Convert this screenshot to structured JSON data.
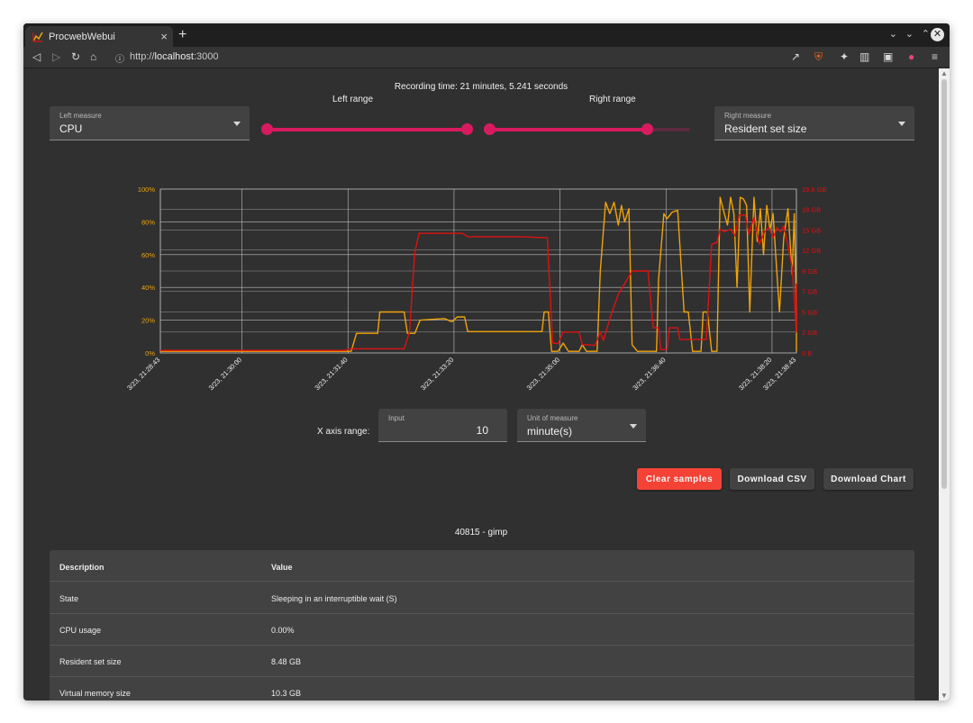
{
  "browser": {
    "tab_title": "ProcwebWebui",
    "tab_close": "×",
    "new_tab": "+",
    "url_scheme": "http://",
    "url_host": "localhost",
    "url_port": ":3000"
  },
  "header": {
    "recording_time": "Recording time: 21 minutes, 5.241 seconds",
    "left_range_label": "Left range",
    "right_range_label": "Right range"
  },
  "left_measure": {
    "label": "Left measure",
    "value": "CPU"
  },
  "right_measure": {
    "label": "Right measure",
    "value": "Resident set size"
  },
  "sliders": {
    "left": {
      "from_fraction": 0.0,
      "to_fraction": 1.0
    },
    "right": {
      "from_fraction": 0.0,
      "to_fraction": 0.78
    }
  },
  "colors": {
    "cpu": "#f0a30a",
    "rss": "#e01010",
    "accent": "#d81b60",
    "danger": "#f44336"
  },
  "chart_data": {
    "type": "line",
    "x_labels": [
      "3/23, 21:28:43",
      "3/23, 21:30:00",
      "3/23, 21:31:40",
      "3/23, 21:33:20",
      "3/23, 21:35:00",
      "3/23, 21:36:40",
      "3/23, 21:38:20",
      "3/23, 21:38:43"
    ],
    "x_label_times_s": [
      0,
      77,
      177,
      277,
      377,
      477,
      577,
      600
    ],
    "xlim_s": [
      0,
      600
    ],
    "left_axis": {
      "ticks": [
        "0%",
        "20%",
        "40%",
        "60%",
        "80%",
        "100%"
      ],
      "ylim": [
        0,
        100
      ],
      "unit": "%"
    },
    "right_axis": {
      "ticks": [
        "0 B",
        "2 GB",
        "5 GB",
        "7 GB",
        "9 GB",
        "12 GB",
        "15 GB",
        "18 GB",
        "19.6 GB"
      ],
      "tick_values": [
        0,
        2.5,
        4.9,
        7.4,
        9.8,
        12.3,
        14.7,
        17.2,
        19.6
      ],
      "ylim": [
        0,
        19.6
      ],
      "unit": "GB"
    },
    "grid": true,
    "series": [
      {
        "axis": "left",
        "points": [
          [
            0,
            1
          ],
          [
            170,
            1
          ],
          [
            180,
            1
          ],
          [
            185,
            12
          ],
          [
            205,
            12
          ],
          [
            207,
            25
          ],
          [
            230,
            25
          ],
          [
            233,
            12
          ],
          [
            240,
            12
          ],
          [
            245,
            20
          ],
          [
            268,
            21
          ],
          [
            275,
            19
          ],
          [
            280,
            22
          ],
          [
            287,
            22
          ],
          [
            290,
            13
          ],
          [
            305,
            13
          ],
          [
            318,
            13
          ],
          [
            340,
            13
          ],
          [
            350,
            13
          ],
          [
            360,
            13
          ],
          [
            362,
            25
          ],
          [
            366,
            25
          ],
          [
            369,
            1
          ],
          [
            375,
            1
          ],
          [
            380,
            6
          ],
          [
            385,
            1
          ],
          [
            395,
            1
          ],
          [
            398,
            5
          ],
          [
            402,
            1
          ],
          [
            412,
            1
          ],
          [
            415,
            50
          ],
          [
            420,
            92
          ],
          [
            424,
            85
          ],
          [
            428,
            92
          ],
          [
            432,
            78
          ],
          [
            435,
            90
          ],
          [
            438,
            80
          ],
          [
            442,
            88
          ],
          [
            445,
            5
          ],
          [
            450,
            1
          ],
          [
            468,
            1
          ],
          [
            470,
            45
          ],
          [
            475,
            85
          ],
          [
            478,
            82
          ],
          [
            483,
            86
          ],
          [
            488,
            87
          ],
          [
            494,
            25
          ],
          [
            498,
            25
          ],
          [
            502,
            1
          ],
          [
            510,
            1
          ],
          [
            512,
            25
          ],
          [
            516,
            25
          ],
          [
            520,
            1
          ],
          [
            525,
            1
          ],
          [
            528,
            95
          ],
          [
            532,
            85
          ],
          [
            535,
            78
          ],
          [
            538,
            95
          ],
          [
            541,
            85
          ],
          [
            544,
            40
          ],
          [
            547,
            95
          ],
          [
            550,
            94
          ],
          [
            553,
            90
          ],
          [
            556,
            25
          ],
          [
            560,
            95
          ],
          [
            563,
            68
          ],
          [
            566,
            88
          ],
          [
            569,
            60
          ],
          [
            572,
            90
          ],
          [
            575,
            75
          ],
          [
            578,
            85
          ],
          [
            581,
            55
          ],
          [
            584,
            25
          ],
          [
            588,
            70
          ],
          [
            592,
            88
          ],
          [
            596,
            48
          ],
          [
            598,
            85
          ],
          [
            602,
            26
          ],
          [
            606,
            1
          ],
          [
            620,
            1
          ],
          [
            625,
            1
          ]
        ]
      },
      {
        "axis": "right",
        "points": [
          [
            0,
            0.3
          ],
          [
            175,
            0.3
          ],
          [
            178,
            0.5
          ],
          [
            185,
            0.5
          ],
          [
            205,
            0.5
          ],
          [
            230,
            0.5
          ],
          [
            235,
            2.5
          ],
          [
            240,
            12.0
          ],
          [
            244,
            14.3
          ],
          [
            285,
            14.3
          ],
          [
            290,
            13.9
          ],
          [
            340,
            13.9
          ],
          [
            360,
            13.8
          ],
          [
            365,
            13.8
          ],
          [
            370,
            1.2
          ],
          [
            375,
            1.1
          ],
          [
            380,
            2.5
          ],
          [
            395,
            2.5
          ],
          [
            398,
            1.0
          ],
          [
            410,
            0.9
          ],
          [
            415,
            2.5
          ],
          [
            418,
            1.5
          ],
          [
            425,
            4.5
          ],
          [
            432,
            7.0
          ],
          [
            445,
            9.8
          ],
          [
            460,
            9.8
          ],
          [
            465,
            3.0
          ],
          [
            470,
            3.0
          ],
          [
            472,
            0.4
          ],
          [
            478,
            0.4
          ],
          [
            480,
            3.0
          ],
          [
            488,
            3.0
          ],
          [
            490,
            1.6
          ],
          [
            500,
            1.6
          ],
          [
            515,
            1.6
          ],
          [
            520,
            13.0
          ],
          [
            525,
            13.2
          ],
          [
            528,
            14.8
          ],
          [
            532,
            14.5
          ],
          [
            538,
            14.8
          ],
          [
            542,
            14.0
          ],
          [
            546,
            16.5
          ],
          [
            552,
            16.5
          ],
          [
            555,
            14.2
          ],
          [
            560,
            16.2
          ],
          [
            565,
            13.0
          ],
          [
            570,
            14.5
          ],
          [
            574,
            15.0
          ],
          [
            578,
            13.8
          ],
          [
            582,
            15.0
          ],
          [
            585,
            14.5
          ],
          [
            588,
            15.2
          ],
          [
            592,
            12.8
          ],
          [
            596,
            10.2
          ],
          [
            600,
            2.5
          ],
          [
            603,
            6.0
          ],
          [
            606,
            8.3
          ],
          [
            640,
            8.3
          ]
        ]
      }
    ]
  },
  "x_axis_range": {
    "label": "X axis range:",
    "input_label": "Input",
    "input_value": "10",
    "unit_label": "Unit of measure",
    "unit_value": "minute(s)"
  },
  "buttons": {
    "clear": "Clear samples",
    "csv": "Download CSV",
    "chart": "Download Chart"
  },
  "process_title": "40815 - gimp",
  "table": {
    "header": {
      "description": "Description",
      "value": "Value"
    },
    "rows": [
      {
        "description": "State",
        "value": "Sleeping in an interruptible wait (S)"
      },
      {
        "description": "CPU usage",
        "value": "0.00%"
      },
      {
        "description": "Resident set size",
        "value": "8.48 GB"
      },
      {
        "description": "Virtual memory size",
        "value": "10.3 GB"
      }
    ]
  }
}
